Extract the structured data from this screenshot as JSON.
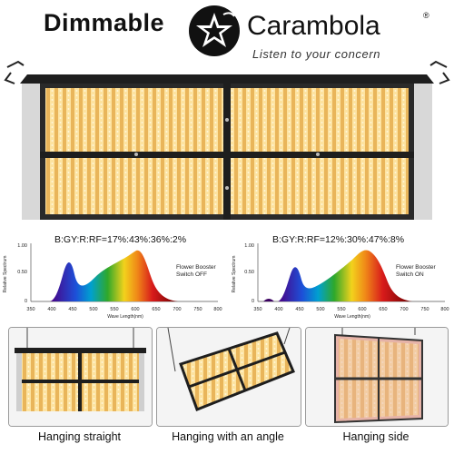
{
  "header": {
    "dimmable": "Dimmable",
    "brand": "Carambola",
    "registered": "®",
    "tagline": "Listen to your concern"
  },
  "colors": {
    "panel_frame": "#1e1e1e",
    "led_warm": "#f3c46a",
    "led_bright": "#fde6a8",
    "spectrum_blue": "#1d4fd8",
    "spectrum_red": "#d81b1b"
  },
  "spectrum_left": {
    "ratio": "B:GY:R:RF=17%:43%:36%:2%",
    "booster_line1": "Flower Booster",
    "booster_line2": "Switch OFF",
    "ylabel": "Relative Spectrum",
    "xlabel": "Wave Length(nm)",
    "yticks": [
      "1.00",
      "0.50",
      "0"
    ],
    "xticks": [
      "350",
      "400",
      "450",
      "500",
      "550",
      "600",
      "650",
      "700",
      "750",
      "800"
    ]
  },
  "spectrum_right": {
    "ratio": "B:GY:R:RF=12%:30%:47%:8%",
    "booster_line1": "Flower Booster",
    "booster_line2": "Switch ON",
    "ylabel": "Relative Spectrum",
    "xlabel": "Wave Length(nm)",
    "yticks": [
      "1.00",
      "0.50",
      "0"
    ],
    "xticks": [
      "350",
      "400",
      "450",
      "500",
      "550",
      "600",
      "650",
      "700",
      "750",
      "800"
    ]
  },
  "captions": {
    "straight": "Hanging straight",
    "angle": "Hanging with an angle",
    "side": "Hanging side"
  }
}
